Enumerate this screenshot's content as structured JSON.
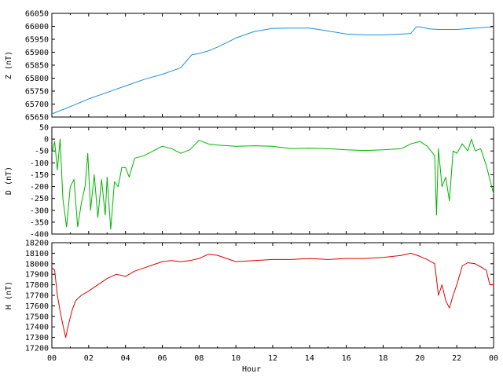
{
  "chart_data": [
    {
      "type": "line",
      "ylabel": "Z (nT)",
      "ylim": [
        65650,
        66050
      ],
      "yticks": [
        65650,
        65700,
        65750,
        65800,
        65850,
        65900,
        65950,
        66000,
        66050
      ],
      "xlim": [
        0,
        24
      ],
      "color": "#1e90dc",
      "x": [
        0,
        1,
        2,
        3,
        4,
        5,
        6,
        7,
        7.3,
        7.6,
        8,
        8.5,
        9,
        10,
        11,
        12,
        13,
        14,
        15,
        16,
        17,
        18,
        19,
        19.5,
        19.8,
        20,
        20.5,
        21,
        22,
        23,
        24
      ],
      "values": [
        65662,
        65690,
        65720,
        65745,
        65770,
        65795,
        65815,
        65840,
        65865,
        65890,
        65895,
        65905,
        65920,
        65955,
        65980,
        65992,
        65993,
        65993,
        65982,
        65970,
        65967,
        65967,
        65970,
        65972,
        65998,
        65998,
        65990,
        65988,
        65988,
        65993,
        65998
      ]
    },
    {
      "type": "line",
      "ylabel": "D (nT)",
      "ylim": [
        -400,
        50
      ],
      "yticks": [
        -400,
        -350,
        -300,
        -250,
        -200,
        -150,
        -100,
        -50,
        0,
        50
      ],
      "xlim": [
        0,
        24
      ],
      "color": "#00b400",
      "x": [
        0,
        0.15,
        0.3,
        0.45,
        0.6,
        0.8,
        1.0,
        1.2,
        1.4,
        1.6,
        1.8,
        1.95,
        2.1,
        2.3,
        2.5,
        2.7,
        2.9,
        3.0,
        3.2,
        3.4,
        3.6,
        3.8,
        4.0,
        4.2,
        4.5,
        5.0,
        5.5,
        6.0,
        6.5,
        7.0,
        7.5,
        8.0,
        8.5,
        9,
        10,
        11,
        12,
        13,
        14,
        15,
        16,
        17,
        18,
        19,
        19.5,
        20,
        20.4,
        20.8,
        20.9,
        21.0,
        21.2,
        21.4,
        21.6,
        21.8,
        22.0,
        22.3,
        22.6,
        22.8,
        23.0,
        23.3,
        23.6,
        24
      ],
      "values": [
        -60,
        -10,
        -130,
        0,
        -250,
        -370,
        -200,
        -170,
        -370,
        -270,
        -200,
        -60,
        -300,
        -150,
        -330,
        -170,
        -320,
        -160,
        -380,
        -180,
        -200,
        -120,
        -120,
        -160,
        -80,
        -70,
        -50,
        -30,
        -40,
        -60,
        -45,
        -5,
        -20,
        -25,
        -30,
        -28,
        -30,
        -40,
        -38,
        -40,
        -45,
        -48,
        -45,
        -40,
        -20,
        -10,
        -30,
        -70,
        -320,
        -40,
        -200,
        -160,
        -260,
        -50,
        -60,
        -20,
        -50,
        0,
        -50,
        -40,
        -110,
        -230
      ]
    },
    {
      "type": "line",
      "ylabel": "H (nT)",
      "ylim": [
        17200,
        18200
      ],
      "yticks": [
        17200,
        17300,
        17400,
        17500,
        17600,
        17700,
        17800,
        17900,
        18000,
        18100,
        18200
      ],
      "xlim": [
        0,
        24
      ],
      "color": "#e00000",
      "xlabel": "Hour",
      "xtick_labels": [
        "00",
        "02",
        "04",
        "06",
        "08",
        "10",
        "12",
        "14",
        "16",
        "18",
        "20",
        "22",
        "00"
      ],
      "x": [
        0,
        0.15,
        0.3,
        0.45,
        0.6,
        0.75,
        0.9,
        1.1,
        1.3,
        1.6,
        2.0,
        2.5,
        3.0,
        3.5,
        4.0,
        4.5,
        5.0,
        5.5,
        6.0,
        6.5,
        7.0,
        7.5,
        8.0,
        8.5,
        9.0,
        9.5,
        10,
        11,
        12,
        13,
        14,
        15,
        16,
        17,
        18,
        19,
        19.5,
        20,
        20.4,
        20.8,
        21.0,
        21.2,
        21.4,
        21.6,
        21.8,
        22.0,
        22.3,
        22.6,
        23.0,
        23.3,
        23.6,
        23.8,
        24
      ],
      "values": [
        17960,
        17940,
        17700,
        17550,
        17420,
        17300,
        17420,
        17560,
        17650,
        17700,
        17740,
        17800,
        17860,
        17900,
        17880,
        17930,
        17960,
        17990,
        18020,
        18030,
        18020,
        18030,
        18050,
        18090,
        18080,
        18050,
        18020,
        18030,
        18040,
        18040,
        18050,
        18040,
        18050,
        18050,
        18060,
        18080,
        18100,
        18070,
        18040,
        18000,
        17700,
        17800,
        17650,
        17580,
        17700,
        17800,
        17980,
        18010,
        18000,
        17970,
        17940,
        17800,
        17800
      ]
    }
  ]
}
